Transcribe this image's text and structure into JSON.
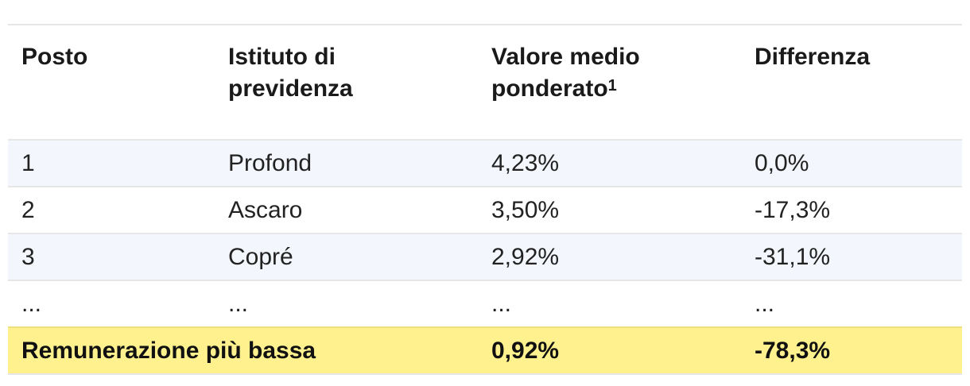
{
  "table": {
    "headers": [
      "Posto",
      "Istituto di previdenza",
      "Valore medio ponderato",
      "Differenza"
    ],
    "header_footnote": "1",
    "rows": [
      [
        "1",
        "Profond",
        "4,23%",
        "0,0%"
      ],
      [
        "2",
        "Ascaro",
        "3,50%",
        "-17,3%"
      ],
      [
        "3",
        "Copré",
        "2,92%",
        "-31,1%"
      ],
      [
        "...",
        "...",
        "...",
        "..."
      ]
    ],
    "total": {
      "label": "Remunerazione più bassa",
      "value": "0,92%",
      "difference": "-78,3%"
    },
    "colors": {
      "stripe": "#f3f6fd",
      "highlight": "#fff28e",
      "border": "#e6e6e6"
    }
  }
}
